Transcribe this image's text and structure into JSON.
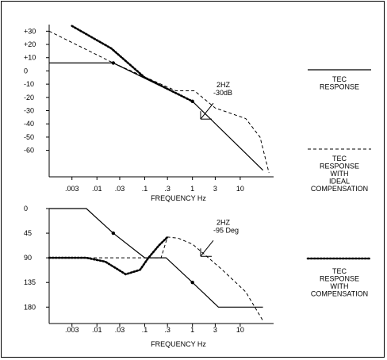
{
  "chart_data": [
    {
      "type": "line",
      "xlabel": "FREQUENCY Hz",
      "ylabel": "",
      "x_scale": "log",
      "x_ticks": [
        {
          "label": ".003",
          "value": 0.003
        },
        {
          "label": ".01",
          "value": 0.01
        },
        {
          "label": ".03",
          "value": 0.03
        },
        {
          "label": ".1",
          "value": 0.1
        },
        {
          "label": ".3",
          "value": 0.3
        },
        {
          "label": "1",
          "value": 1
        },
        {
          "label": "3",
          "value": 3
        },
        {
          "label": "10",
          "value": 10
        }
      ],
      "xlim": [
        0.001,
        50
      ],
      "y_ticks": [
        {
          "label": "+30",
          "value": 30
        },
        {
          "label": "+20",
          "value": 20
        },
        {
          "label": "+10",
          "value": 10
        },
        {
          "label": "0",
          "value": 0
        },
        {
          "label": "-10",
          "value": -10
        },
        {
          "label": "-20",
          "value": -20
        },
        {
          "label": "-30",
          "value": -30
        },
        {
          "label": "-40",
          "value": -40
        },
        {
          "label": "-50",
          "value": -50
        },
        {
          "label": "-60",
          "value": -60
        }
      ],
      "ylim": [
        -80,
        35
      ],
      "annotation": {
        "line1": "2HZ",
        "line2": "-30dB",
        "x": 1.6,
        "y": -28
      },
      "series": [
        {
          "style": "solid",
          "points": [
            [
              0.001,
              6
            ],
            [
              0.022,
              6
            ],
            [
              1,
              -23
            ],
            [
              30,
              -75
            ]
          ],
          "markers": [
            [
              0.022,
              6
            ],
            [
              1,
              -23
            ]
          ]
        },
        {
          "style": "dashed",
          "points": [
            [
              0.001,
              30
            ],
            [
              0.022,
              6
            ],
            [
              0.45,
              -15
            ],
            [
              1.1,
              -15
            ],
            [
              3,
              -28
            ],
            [
              13,
              -36
            ],
            [
              26,
              -50
            ],
            [
              40,
              -77
            ]
          ]
        },
        {
          "style": "dotted",
          "points": [
            [
              0.003,
              34
            ],
            [
              0.02,
              17
            ],
            [
              0.1,
              -5
            ],
            [
              1,
              -23
            ]
          ]
        }
      ]
    },
    {
      "type": "line",
      "xlabel": "FREQUENCY Hz",
      "ylabel": "",
      "x_scale": "log",
      "x_ticks": [
        {
          "label": ".003",
          "value": 0.003
        },
        {
          "label": ".01",
          "value": 0.01
        },
        {
          "label": ".03",
          "value": 0.03
        },
        {
          "label": ".1",
          "value": 0.1
        },
        {
          "label": ".3",
          "value": 0.3
        },
        {
          "label": "1",
          "value": 1
        },
        {
          "label": "3",
          "value": 3
        },
        {
          "label": "10",
          "value": 10
        }
      ],
      "xlim": [
        0.001,
        50
      ],
      "y_ticks": [
        {
          "label": "0",
          "value": 0
        },
        {
          "label": "45",
          "value": 45
        },
        {
          "label": "90",
          "value": 90
        },
        {
          "label": "135",
          "value": 135
        },
        {
          "label": "180",
          "value": 180
        }
      ],
      "ylim": [
        0,
        210
      ],
      "y_inverted": true,
      "annotation": {
        "line1": "2HZ",
        "line2": "-95 Deg",
        "x": 1.6,
        "y": 67
      },
      "series": [
        {
          "style": "solid",
          "points": [
            [
              0.001,
              0
            ],
            [
              0.006,
              0
            ],
            [
              0.022,
              45
            ],
            [
              0.1,
              90
            ],
            [
              0.28,
              90
            ],
            [
              1,
              135
            ],
            [
              3.5,
              180
            ],
            [
              30,
              180
            ]
          ],
          "markers": [
            [
              0.022,
              45
            ],
            [
              1,
              135
            ]
          ]
        },
        {
          "style": "dashed",
          "points": [
            [
              0.001,
              90
            ],
            [
              0.22,
              90
            ],
            [
              0.3,
              52
            ],
            [
              0.5,
              54
            ],
            [
              1,
              65
            ],
            [
              4,
              110
            ],
            [
              13,
              152
            ],
            [
              30,
              205
            ]
          ]
        },
        {
          "style": "dotted",
          "points": [
            [
              0.001,
              90
            ],
            [
              0.006,
              90
            ],
            [
              0.015,
              97
            ],
            [
              0.04,
              120
            ],
            [
              0.08,
              112
            ],
            [
              0.12,
              90
            ],
            [
              0.2,
              67
            ],
            [
              0.3,
              52
            ]
          ]
        }
      ]
    }
  ],
  "legend": [
    {
      "style": "solid",
      "lines": [
        "TEC",
        "RESPONSE"
      ]
    },
    {
      "style": "dashed",
      "lines": [
        "TEC",
        "RESPONSE",
        "WITH",
        "IDEAL",
        "COMPENSATION"
      ]
    },
    {
      "style": "dotted",
      "lines": [
        "TEC",
        "RESPONSE",
        "WITH",
        "COMPENSATION"
      ]
    }
  ]
}
